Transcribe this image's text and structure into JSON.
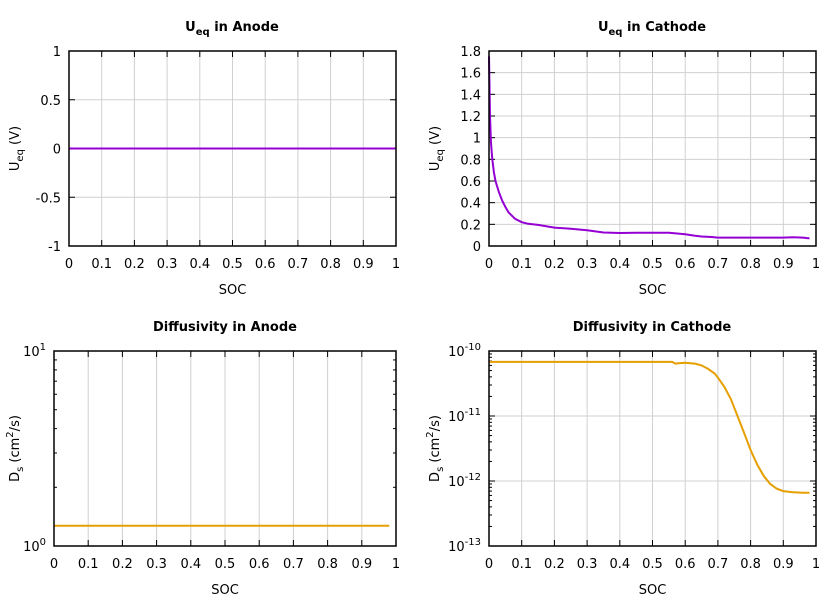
{
  "chart_data": [
    {
      "type": "line",
      "title": {
        "main": "U",
        "sub": "eq",
        "rest": " in Anode"
      },
      "xlabel": "SOC",
      "ylabel": {
        "main": "U",
        "sub": "eq",
        "rest": " (V)"
      },
      "xlim": [
        0,
        1
      ],
      "ylim": [
        -1,
        1
      ],
      "yscale": "linear",
      "grid": true,
      "xticks": [
        "0",
        "0.1",
        "0.2",
        "0.3",
        "0.4",
        "0.5",
        "0.6",
        "0.7",
        "0.8",
        "0.9",
        "1"
      ],
      "yticks": [
        -1,
        -0.5,
        0,
        0.5,
        1
      ],
      "ytick_labels": [
        "-1",
        "-0.5",
        "0",
        "0.5",
        "1"
      ],
      "color": "#9400d3",
      "x": [
        0,
        1
      ],
      "y": [
        0,
        0
      ]
    },
    {
      "type": "line",
      "title": {
        "main": "U",
        "sub": "eq",
        "rest": " in Cathode"
      },
      "xlabel": "SOC",
      "ylabel": {
        "main": "U",
        "sub": "eq",
        "rest": " (V)"
      },
      "xlim": [
        0,
        1
      ],
      "ylim": [
        0,
        1.8
      ],
      "yscale": "linear",
      "grid": true,
      "xticks": [
        "0",
        "0.1",
        "0.2",
        "0.3",
        "0.4",
        "0.5",
        "0.6",
        "0.7",
        "0.8",
        "0.9",
        "1"
      ],
      "yticks": [
        0,
        0.2,
        0.4,
        0.6,
        0.8,
        1,
        1.2,
        1.4,
        1.6,
        1.8
      ],
      "ytick_labels": [
        "0",
        "0.2",
        "0.4",
        "0.6",
        "0.8",
        "1",
        "1.2",
        "1.4",
        "1.6",
        "1.8"
      ],
      "color": "#9400d3",
      "x": [
        0,
        0.003,
        0.006,
        0.01,
        0.015,
        0.02,
        0.03,
        0.04,
        0.05,
        0.06,
        0.08,
        0.1,
        0.12,
        0.15,
        0.2,
        0.25,
        0.3,
        0.35,
        0.4,
        0.45,
        0.5,
        0.55,
        0.6,
        0.63,
        0.65,
        0.68,
        0.7,
        0.75,
        0.8,
        0.85,
        0.9,
        0.93,
        0.96,
        0.98
      ],
      "y": [
        1.75,
        1.2,
        0.95,
        0.8,
        0.68,
        0.6,
        0.5,
        0.42,
        0.36,
        0.31,
        0.25,
        0.22,
        0.205,
        0.195,
        0.17,
        0.16,
        0.145,
        0.125,
        0.12,
        0.122,
        0.122,
        0.122,
        0.108,
        0.095,
        0.088,
        0.083,
        0.078,
        0.078,
        0.078,
        0.078,
        0.078,
        0.08,
        0.078,
        0.07
      ]
    },
    {
      "type": "line",
      "title": {
        "main": "Diffusivity in Anode",
        "sub": "",
        "rest": ""
      },
      "xlabel": "SOC",
      "ylabel": {
        "main": "D",
        "sub": "s",
        "rest": " (cm",
        "sup": "2",
        "end": "/s)"
      },
      "xlim": [
        0,
        1
      ],
      "ylim": [
        1,
        10
      ],
      "yscale": "log",
      "grid": true,
      "xticks": [
        "0",
        "0.1",
        "0.2",
        "0.3",
        "0.4",
        "0.5",
        "0.6",
        "0.7",
        "0.8",
        "0.9",
        "1"
      ],
      "yticks": [
        1,
        10
      ],
      "ytick_labels": [
        {
          "base": "10",
          "exp": "0"
        },
        {
          "base": "10",
          "exp": "1"
        }
      ],
      "color": "#e69f00",
      "x": [
        0,
        0.98
      ],
      "y": [
        1.27,
        1.27
      ]
    },
    {
      "type": "line",
      "title": {
        "main": "Diffusivity in Cathode",
        "sub": "",
        "rest": ""
      },
      "xlabel": "SOC",
      "ylabel": {
        "main": "D",
        "sub": "s",
        "rest": " (cm",
        "sup": "2",
        "end": "/s)"
      },
      "xlim": [
        0,
        1
      ],
      "ylim": [
        1e-13,
        1e-10
      ],
      "yscale": "log",
      "grid": true,
      "xticks": [
        "0",
        "0.1",
        "0.2",
        "0.3",
        "0.4",
        "0.5",
        "0.6",
        "0.7",
        "0.8",
        "0.9",
        "1"
      ],
      "yticks": [
        1e-13,
        1e-12,
        1e-11,
        1e-10
      ],
      "ytick_labels": [
        {
          "base": "10",
          "exp": "-13"
        },
        {
          "base": "10",
          "exp": "-12"
        },
        {
          "base": "10",
          "exp": "-11"
        },
        {
          "base": "10",
          "exp": "-10"
        }
      ],
      "color": "#e69f00",
      "x": [
        0,
        0.1,
        0.2,
        0.3,
        0.4,
        0.5,
        0.56,
        0.57,
        0.58,
        0.6,
        0.63,
        0.65,
        0.67,
        0.69,
        0.7,
        0.72,
        0.74,
        0.76,
        0.78,
        0.8,
        0.82,
        0.84,
        0.86,
        0.88,
        0.9,
        0.93,
        0.96,
        0.98
      ],
      "y": [
        6.8e-11,
        6.8e-11,
        6.8e-11,
        6.8e-11,
        6.8e-11,
        6.8e-11,
        6.8e-11,
        6.4e-11,
        6.5e-11,
        6.6e-11,
        6.4e-11,
        6e-11,
        5.3e-11,
        4.5e-11,
        3.9e-11,
        2.8e-11,
        1.8e-11,
        1e-11,
        5.5e-12,
        3e-12,
        1.8e-12,
        1.2e-12,
        9e-13,
        7.6e-13,
        7e-13,
        6.7e-13,
        6.6e-13,
        6.6e-13
      ]
    }
  ]
}
